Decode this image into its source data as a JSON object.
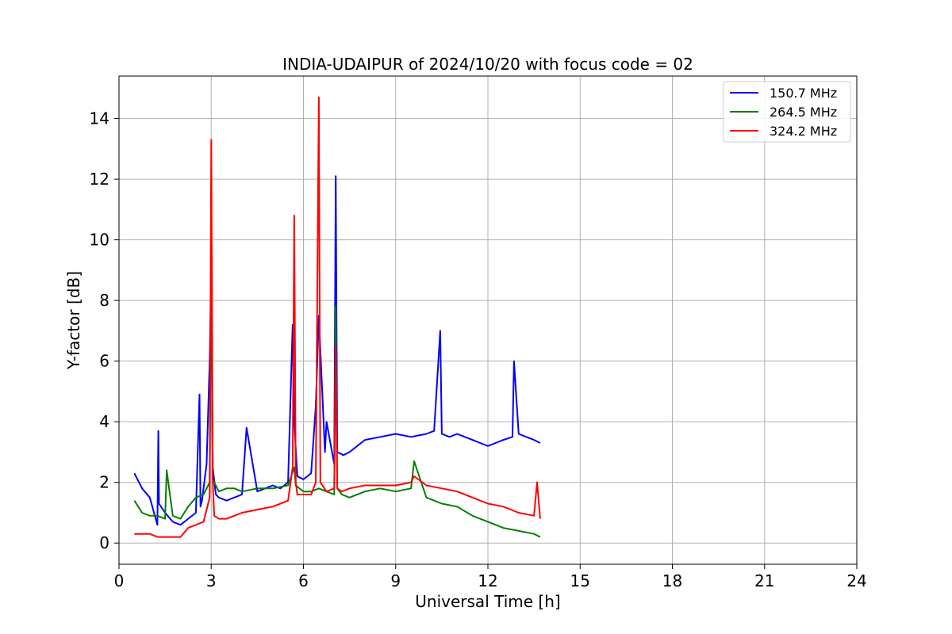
{
  "chart_data": {
    "type": "line",
    "title": "INDIA-UDAIPUR of 2024/10/20 with focus code = 02",
    "xlabel": "Universal Time [h]",
    "ylabel": "Y-factor [dB]",
    "xlim": [
      0,
      24
    ],
    "ylim": [
      -0.7,
      15.4
    ],
    "xticks": [
      0,
      3,
      6,
      9,
      12,
      15,
      18,
      21,
      24
    ],
    "yticks": [
      0,
      2,
      4,
      6,
      8,
      10,
      12,
      14
    ],
    "grid": true,
    "legend_position": "top-right",
    "series": [
      {
        "name": "150.7 MHz",
        "color": "#0000ff",
        "x": [
          0.5,
          0.75,
          1.0,
          1.25,
          1.28,
          1.3,
          1.5,
          1.75,
          2.0,
          2.25,
          2.5,
          2.62,
          2.65,
          2.7,
          2.85,
          2.95,
          3.0,
          3.05,
          3.15,
          3.25,
          3.5,
          3.75,
          4.0,
          4.15,
          4.5,
          4.75,
          5.0,
          5.25,
          5.5,
          5.65,
          5.7,
          5.8,
          6.0,
          6.25,
          6.4,
          6.5,
          6.7,
          6.75,
          7.0,
          7.05,
          7.1,
          7.3,
          7.5,
          7.75,
          8.0,
          8.5,
          9.0,
          9.5,
          10.0,
          10.25,
          10.45,
          10.5,
          10.75,
          11.0,
          11.25,
          11.5,
          11.75,
          12.0,
          12.25,
          12.5,
          12.8,
          12.85,
          13.0,
          13.25,
          13.5,
          13.7
        ],
        "y": [
          2.3,
          1.8,
          1.5,
          0.6,
          3.7,
          1.3,
          1.0,
          0.7,
          0.6,
          0.8,
          1.0,
          4.9,
          1.2,
          1.4,
          2.6,
          6.0,
          8.9,
          2.5,
          1.6,
          1.5,
          1.4,
          1.5,
          1.6,
          3.8,
          1.7,
          1.8,
          1.9,
          1.8,
          2.0,
          7.2,
          4.0,
          2.2,
          2.1,
          2.3,
          4.5,
          7.5,
          3.0,
          4.0,
          2.6,
          12.1,
          3.0,
          2.9,
          3.0,
          3.2,
          3.4,
          3.5,
          3.6,
          3.5,
          3.6,
          3.7,
          7.0,
          3.6,
          3.5,
          3.6,
          3.5,
          3.4,
          3.3,
          3.2,
          3.3,
          3.4,
          3.5,
          6.0,
          3.6,
          3.5,
          3.4,
          3.3
        ]
      },
      {
        "name": "264.5 MHz",
        "color": "#008000",
        "x": [
          0.5,
          0.75,
          1.0,
          1.25,
          1.5,
          1.55,
          1.75,
          2.0,
          2.25,
          2.5,
          2.75,
          2.95,
          3.0,
          3.05,
          3.25,
          3.5,
          3.75,
          4.0,
          4.5,
          5.0,
          5.5,
          5.7,
          5.75,
          6.0,
          6.25,
          6.5,
          6.75,
          7.0,
          7.05,
          7.1,
          7.25,
          7.5,
          8.0,
          8.5,
          9.0,
          9.5,
          9.6,
          10.0,
          10.5,
          11.0,
          11.5,
          12.0,
          12.5,
          13.0,
          13.5,
          13.7
        ],
        "y": [
          1.4,
          1.0,
          0.9,
          0.9,
          0.8,
          2.4,
          0.9,
          0.8,
          1.2,
          1.5,
          1.6,
          2.0,
          9.8,
          2.1,
          1.7,
          1.8,
          1.8,
          1.7,
          1.8,
          1.8,
          1.9,
          2.5,
          1.9,
          1.7,
          1.7,
          1.8,
          1.7,
          1.6,
          7.8,
          1.8,
          1.6,
          1.5,
          1.7,
          1.8,
          1.7,
          1.8,
          2.7,
          1.5,
          1.3,
          1.2,
          0.9,
          0.7,
          0.5,
          0.4,
          0.3,
          0.2
        ]
      },
      {
        "name": "324.2 MHz",
        "color": "#ff0000",
        "x": [
          0.5,
          0.75,
          1.0,
          1.25,
          1.5,
          1.75,
          2.0,
          2.25,
          2.5,
          2.75,
          2.95,
          3.0,
          3.05,
          3.1,
          3.25,
          3.5,
          3.75,
          4.0,
          4.5,
          5.0,
          5.5,
          5.65,
          5.7,
          5.75,
          5.8,
          6.0,
          6.25,
          6.4,
          6.5,
          6.55,
          6.75,
          7.0,
          7.05,
          7.1,
          7.25,
          7.5,
          8.0,
          8.5,
          9.0,
          9.5,
          9.6,
          10.0,
          10.5,
          11.0,
          11.5,
          12.0,
          12.5,
          13.0,
          13.5,
          13.6,
          13.7
        ],
        "y": [
          0.3,
          0.3,
          0.3,
          0.2,
          0.2,
          0.2,
          0.2,
          0.5,
          0.6,
          0.7,
          1.5,
          13.3,
          2.0,
          0.9,
          0.8,
          0.8,
          0.9,
          1.0,
          1.1,
          1.2,
          1.4,
          2.5,
          10.8,
          2.0,
          1.6,
          1.6,
          1.6,
          2.0,
          14.7,
          2.0,
          1.7,
          1.8,
          6.5,
          1.8,
          1.7,
          1.8,
          1.9,
          1.9,
          1.9,
          2.0,
          2.2,
          1.9,
          1.8,
          1.7,
          1.5,
          1.3,
          1.2,
          1.0,
          0.9,
          2.0,
          0.8
        ]
      }
    ]
  }
}
